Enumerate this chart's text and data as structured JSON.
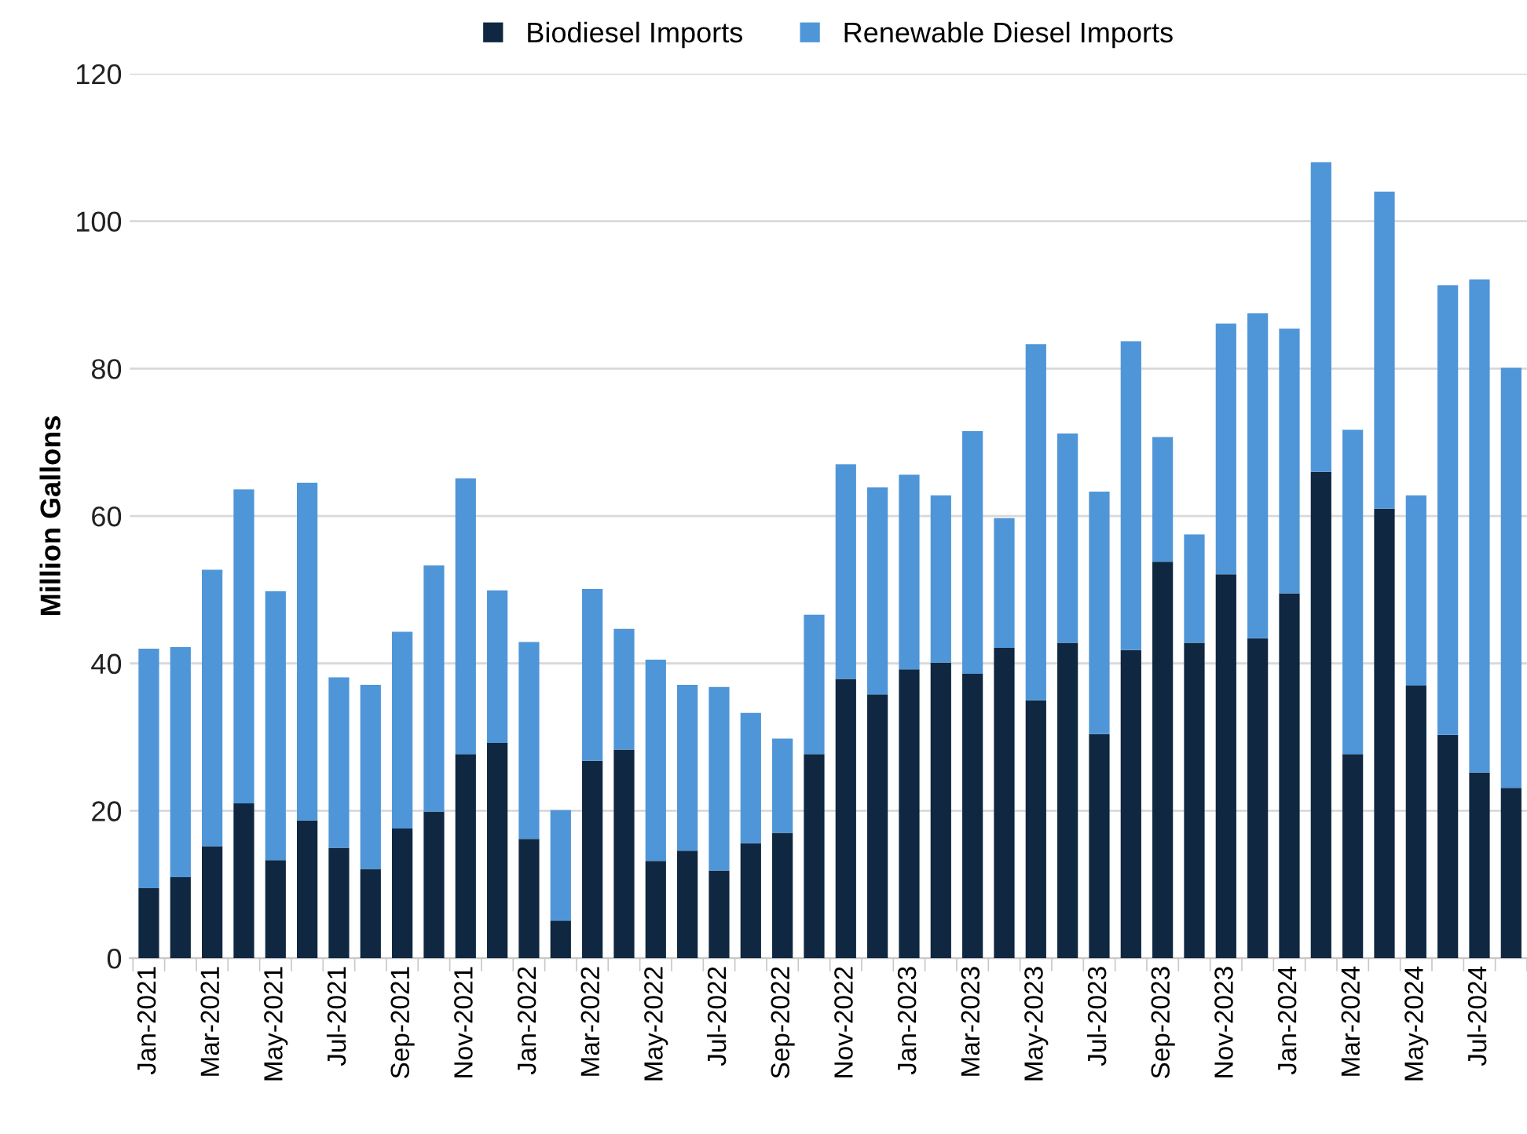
{
  "chart_data": {
    "type": "bar",
    "stacked": true,
    "ylabel": "Million Gallons",
    "categories": [
      "Jan-2021",
      null,
      "Mar-2021",
      null,
      "May-2021",
      null,
      "Jul-2021",
      null,
      "Sep-2021",
      null,
      "Nov-2021",
      null,
      "Jan-2022",
      null,
      "Mar-2022",
      null,
      "May-2022",
      null,
      "Jul-2022",
      null,
      "Sep-2022",
      null,
      "Nov-2022",
      null,
      "Jan-2023",
      null,
      "Mar-2023",
      null,
      "May-2023",
      null,
      "Jul-2023",
      null,
      "Sep-2023",
      null,
      "Nov-2023",
      null,
      "Jan-2024",
      null,
      "Mar-2024",
      null,
      "May-2024",
      null,
      "Jul-2024",
      null
    ],
    "series": [
      {
        "name": "Biodiesel Imports",
        "color": "#0f2740",
        "values": [
          9.5,
          11,
          15.2,
          21,
          13.3,
          18.7,
          15,
          12.1,
          17.6,
          19.9,
          27.7,
          29.2,
          16.2,
          5.1,
          26.8,
          28.3,
          13.2,
          14.6,
          11.9,
          15.6,
          17,
          27.7,
          37.9,
          35.8,
          39.2,
          40.1,
          38.6,
          42.1,
          35,
          42.8,
          30.4,
          41.8,
          53.8,
          42.8,
          52.1,
          43.4,
          49.5,
          66,
          27.7,
          61,
          37,
          30.3,
          25.2,
          23.1
        ]
      },
      {
        "name": "Renewable Diesel Imports",
        "color": "#4f96d8",
        "values": [
          32.5,
          31.2,
          37.5,
          42.6,
          36.5,
          45.8,
          23.1,
          25.0,
          26.7,
          33.4,
          37.4,
          20.7,
          26.7,
          15.0,
          23.3,
          16.4,
          27.3,
          22.5,
          24.9,
          17.7,
          12.8,
          18.9,
          29.1,
          28.1,
          26.4,
          22.7,
          32.9,
          17.6,
          48.3,
          28.4,
          32.9,
          41.9,
          16.9,
          14.7,
          34.0,
          44.1,
          35.9,
          42.0,
          44.0,
          43.0,
          25.8,
          61.0,
          66.9,
          57.0
        ]
      }
    ],
    "ylim": [
      0,
      120
    ],
    "yticks": [
      0,
      20,
      40,
      60,
      80,
      100,
      120
    ],
    "grid": "y",
    "legend": "top"
  }
}
